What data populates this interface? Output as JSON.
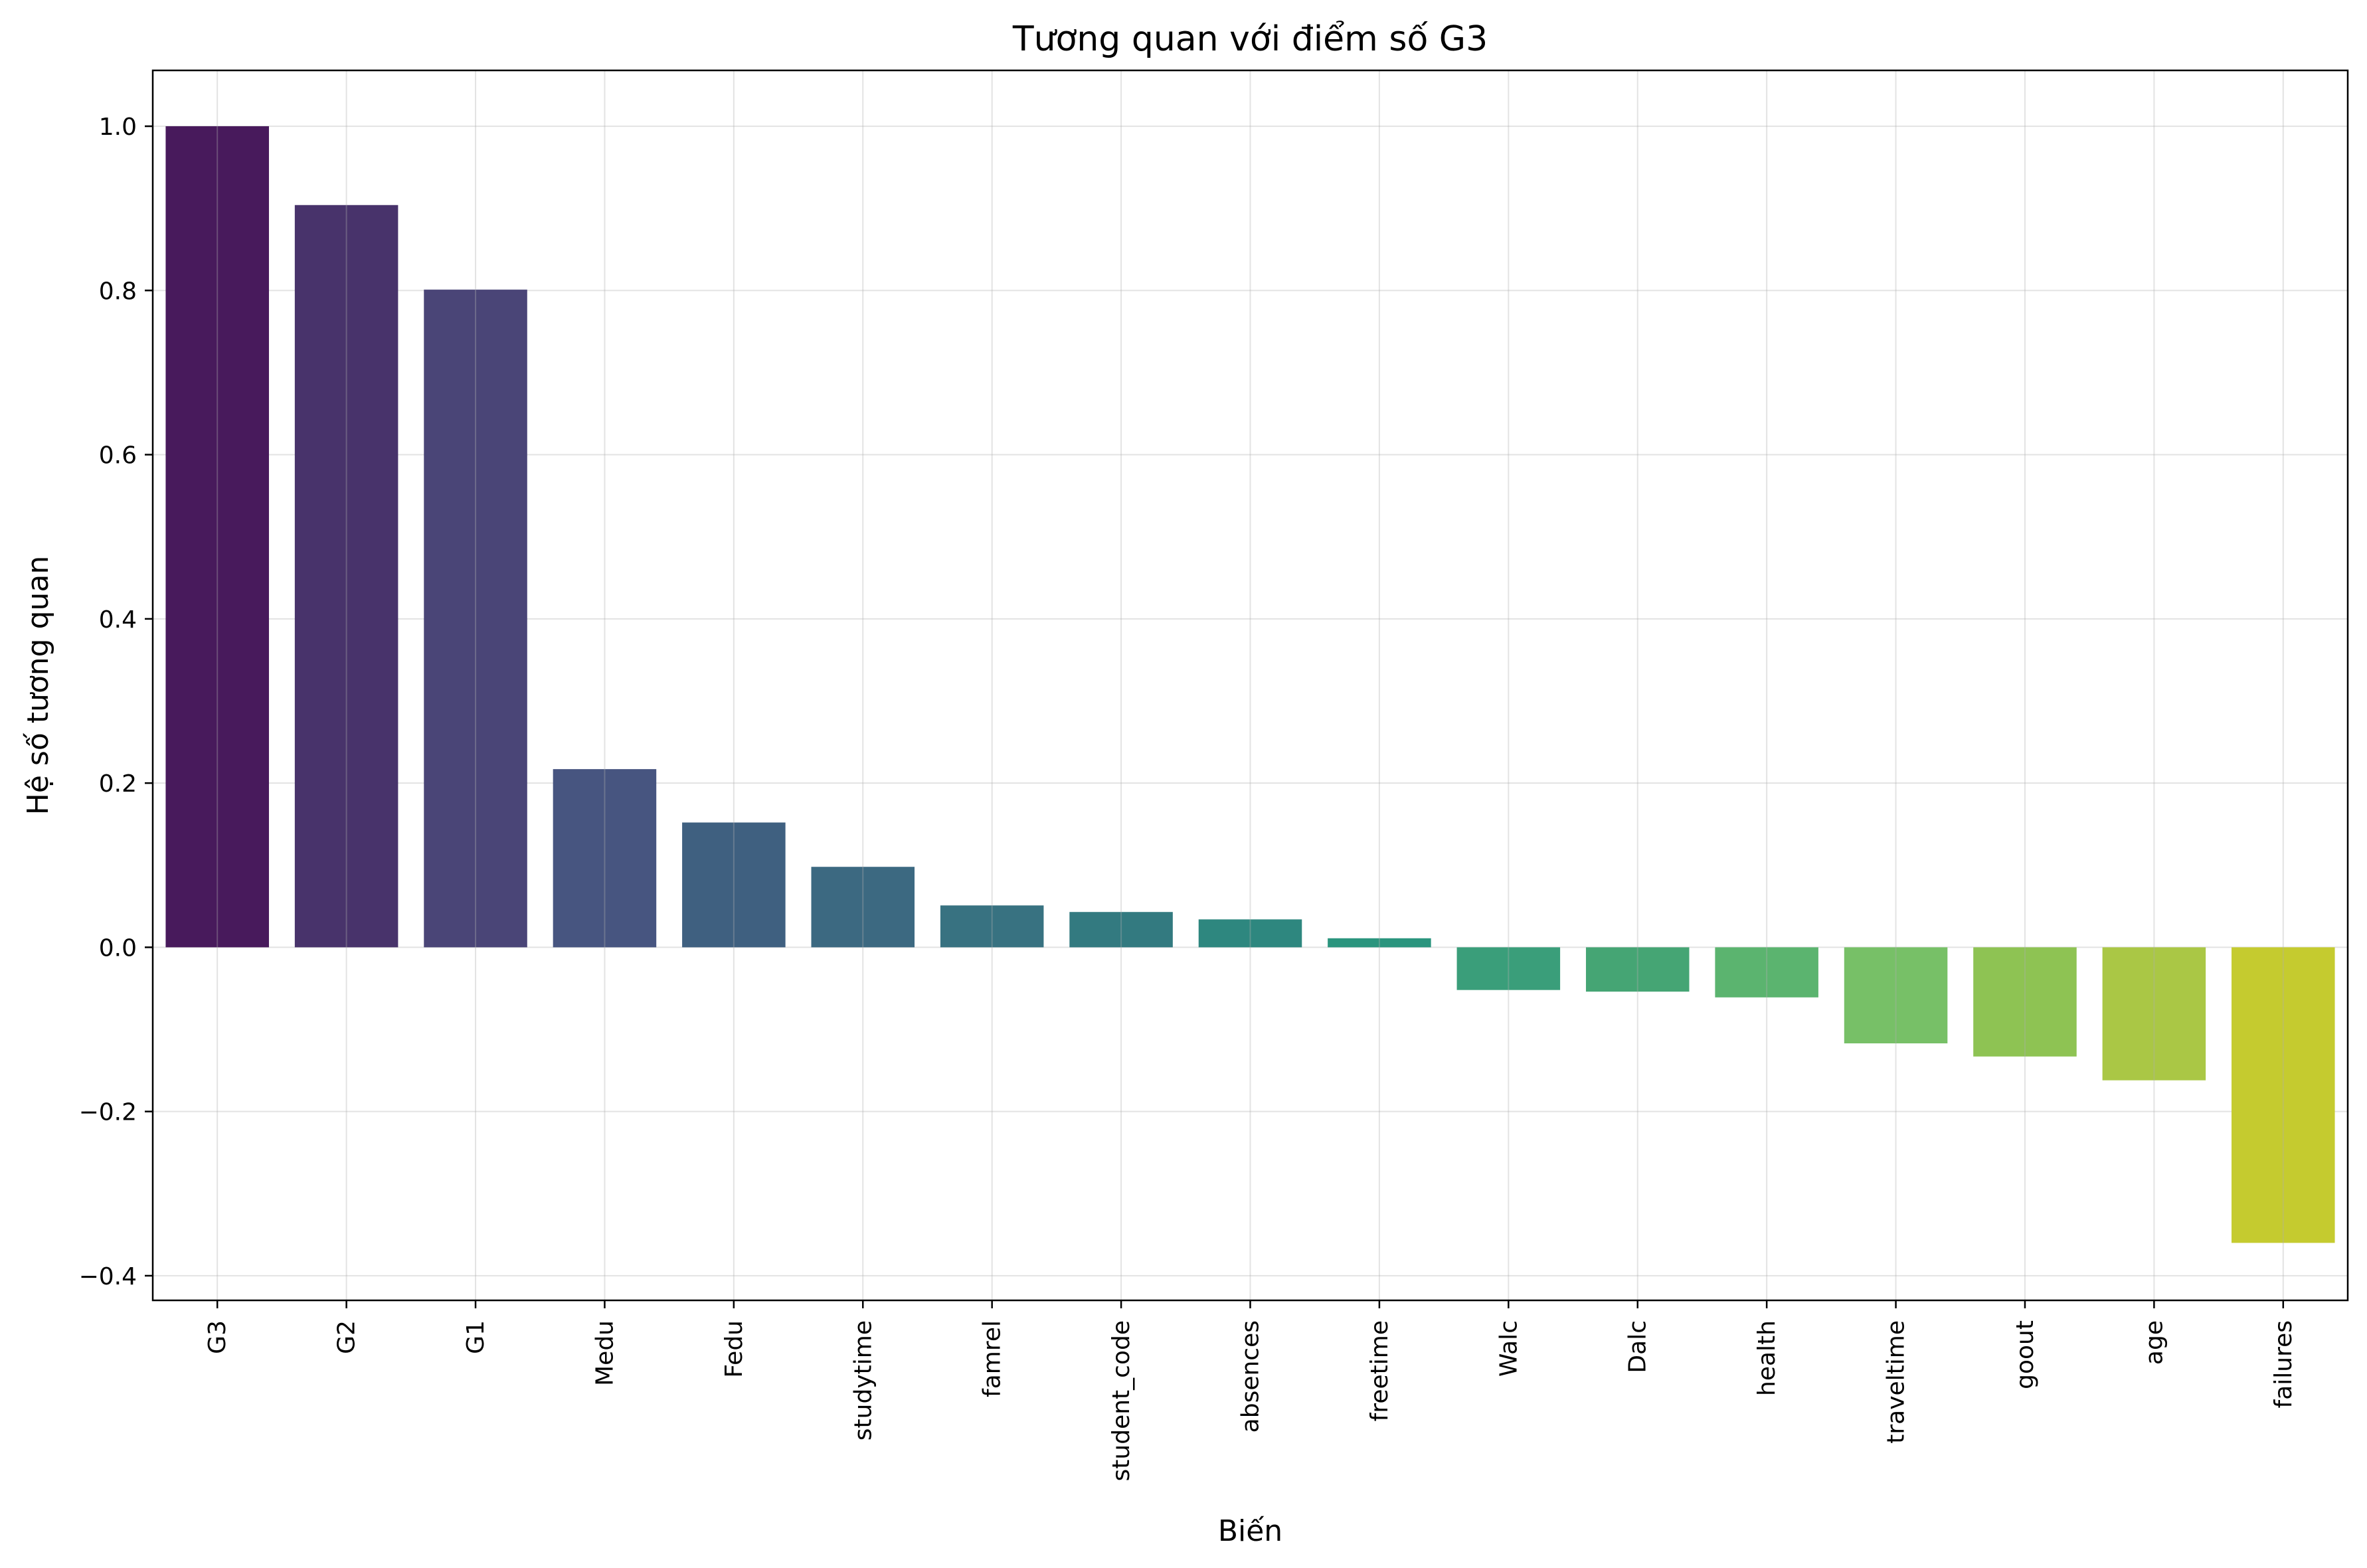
{
  "chart_data": {
    "type": "bar",
    "title": "Tương quan với điểm số G3",
    "xlabel": "Biến",
    "ylabel": "Hệ số tương quan",
    "categories": [
      "G3",
      "G2",
      "G1",
      "Medu",
      "Fedu",
      "studytime",
      "famrel",
      "student_code",
      "absences",
      "freetime",
      "Walc",
      "Dalc",
      "health",
      "traveltime",
      "goout",
      "age",
      "failures"
    ],
    "values": [
      1.0,
      0.904,
      0.801,
      0.217,
      0.152,
      0.098,
      0.051,
      0.043,
      0.034,
      0.011,
      -0.052,
      -0.054,
      -0.061,
      -0.117,
      -0.133,
      -0.162,
      -0.36
    ],
    "colors": [
      "#481a5c",
      "#48336b",
      "#4a4577",
      "#475580",
      "#3f6080",
      "#3c6981",
      "#387281",
      "#337a80",
      "#2e877f",
      "#2b957e",
      "#3a9e7a",
      "#45a574",
      "#5bb46f",
      "#77c067",
      "#8ec353",
      "#aac745",
      "#c5cb2f"
    ],
    "ylim": [
      -0.43,
      1.068
    ],
    "yticks": [
      -0.4,
      -0.2,
      0.0,
      0.2,
      0.4,
      0.6,
      0.8,
      1.0
    ],
    "ytick_labels": [
      "−0.4",
      "−0.2",
      "0.0",
      "0.2",
      "0.4",
      "0.6",
      "0.8",
      "1.0"
    ],
    "grid": true,
    "legend": "none"
  }
}
